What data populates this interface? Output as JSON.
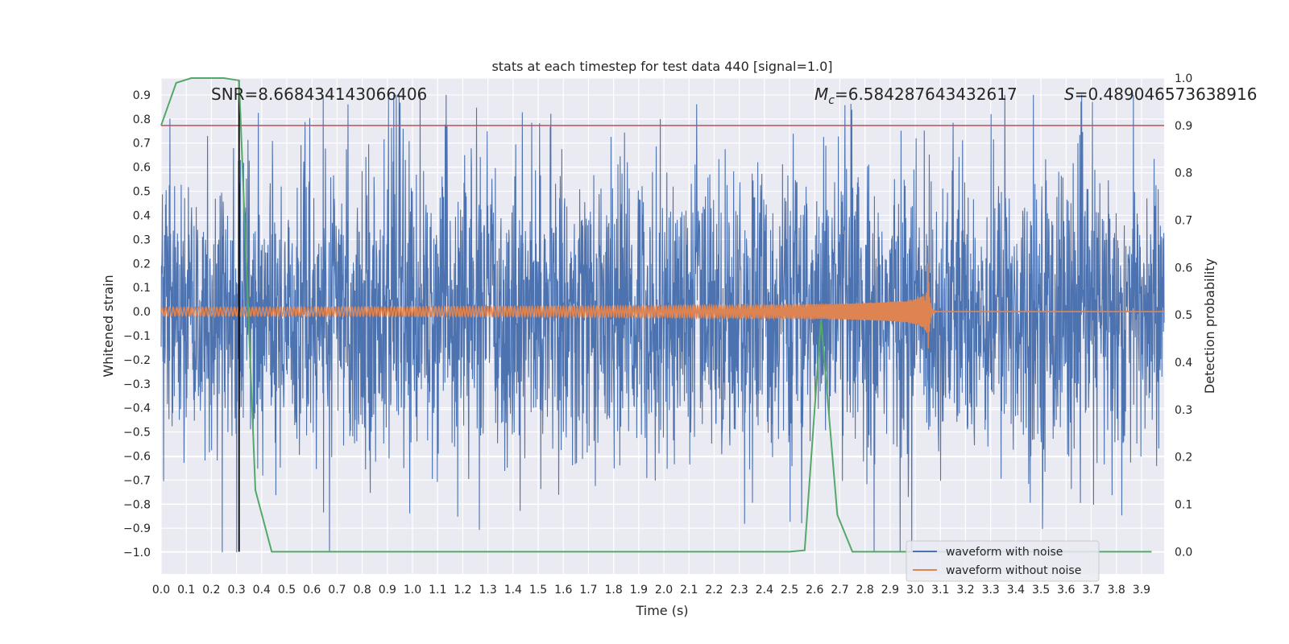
{
  "chart_data": {
    "type": "line",
    "title": "stats at each timestep for test data 440 [signal=1.0]",
    "xlabel": "Time (s)",
    "ylabel_left": "Whitened strain",
    "ylabel_right": "Detection probability",
    "xlim": [
      0.0,
      3.99
    ],
    "ylim_left": [
      -1.09,
      0.97
    ],
    "ylim_right": [
      -0.047,
      1.0
    ],
    "x_ticks": [
      "0.0",
      "0.1",
      "0.2",
      "0.3",
      "0.4",
      "0.5",
      "0.6",
      "0.7",
      "0.8",
      "0.9",
      "1.0",
      "1.1",
      "1.2",
      "1.3",
      "1.4",
      "1.5",
      "1.6",
      "1.7",
      "1.8",
      "1.9",
      "2.0",
      "2.1",
      "2.2",
      "2.3",
      "2.4",
      "2.5",
      "2.6",
      "2.7",
      "2.8",
      "2.9",
      "3.0",
      "3.1",
      "3.2",
      "3.3",
      "3.4",
      "3.5",
      "3.6",
      "3.7",
      "3.8",
      "3.9"
    ],
    "y_ticks_left": [
      "0.9",
      "0.8",
      "0.7",
      "0.6",
      "0.5",
      "0.4",
      "0.3",
      "0.2",
      "0.1",
      "0.0",
      "−0.1",
      "−0.2",
      "−0.3",
      "−0.4",
      "−0.5",
      "−0.6",
      "−0.7",
      "−0.8",
      "−0.9",
      "−1.0"
    ],
    "y_ticks_right": [
      "0.0",
      "0.1",
      "0.2",
      "0.3",
      "0.4",
      "0.5",
      "0.6",
      "0.7",
      "0.8",
      "0.9",
      "1.0"
    ],
    "annotations": {
      "snr": "SNR=8.668434143066406",
      "mc_symbol": "M",
      "mc_sub": "c",
      "mc_value": "=6.584287643432617",
      "s_symbol": "S",
      "s_value": "=0.489046573638916"
    },
    "threshold": {
      "value": 0.9,
      "axis": "right",
      "color": "#c44e52"
    },
    "detection_marker": {
      "x": 0.31,
      "color": "#000000"
    },
    "series": [
      {
        "name": "waveform with noise",
        "color": "#4c72b0",
        "axis": "left",
        "description": "whitened noisy strain, roughly within [-1.0, 0.9]"
      },
      {
        "name": "waveform without noise",
        "color": "#dd8452",
        "axis": "left",
        "description": "chirp signal, amplitude grows until merger near t=3.05 s then rings down"
      },
      {
        "name": "detection probability",
        "color": "#55a868",
        "axis": "right",
        "x": [
          0.0,
          0.06,
          0.12,
          0.19,
          0.25,
          0.31,
          0.375,
          0.44,
          0.5,
          1.0,
          1.5,
          2.0,
          2.5,
          2.56,
          2.625,
          2.69,
          2.75,
          3.0,
          3.5,
          3.94
        ],
        "values": [
          0.9,
          0.99,
          1.0,
          1.0,
          1.0,
          0.995,
          0.13,
          0.0,
          0.0,
          0.0,
          0.0,
          0.0,
          0.0,
          0.003,
          0.49,
          0.078,
          0.0,
          0.0,
          0.0,
          0.0
        ]
      }
    ],
    "legend": {
      "position": "lower-right",
      "entries": [
        {
          "label": "waveform with noise",
          "color": "#4c72b0"
        },
        {
          "label": "waveform without noise",
          "color": "#dd8452"
        }
      ]
    }
  }
}
